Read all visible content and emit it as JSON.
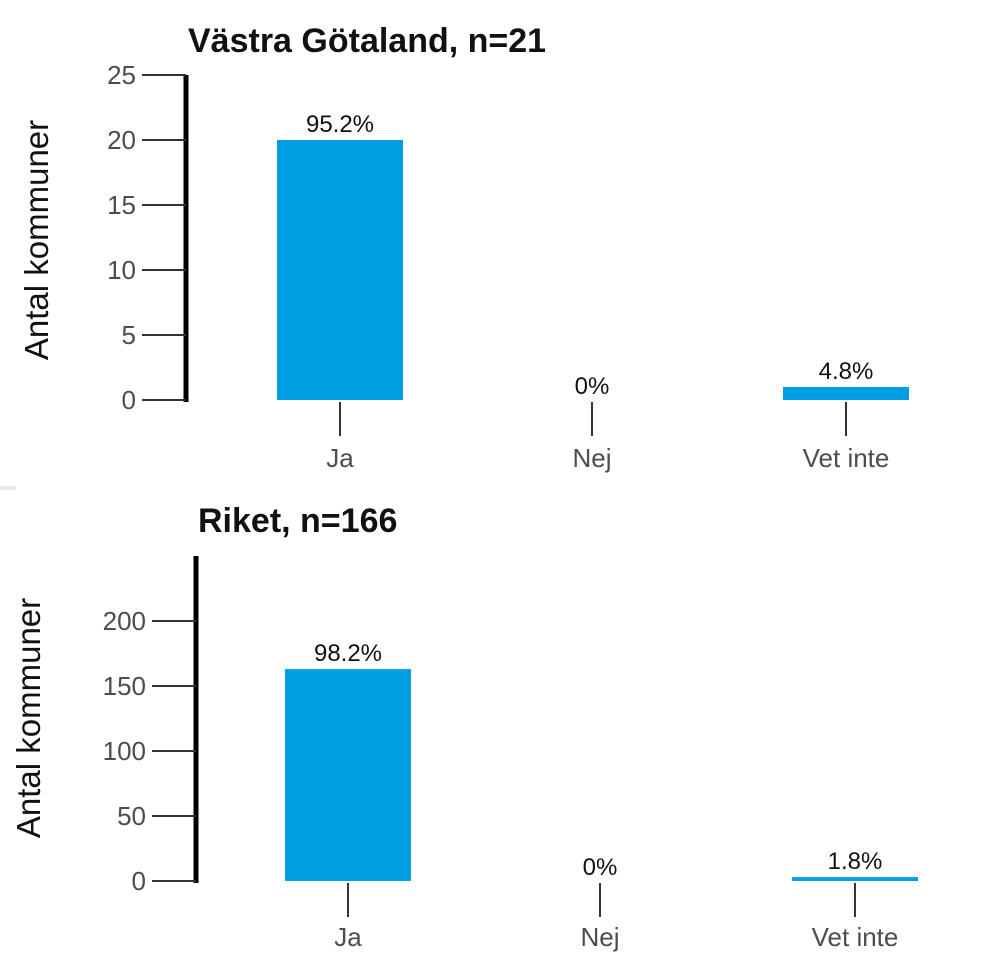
{
  "chart_data": [
    {
      "type": "bar",
      "title": "Västra Götaland, n=21",
      "ylabel": "Antal kommuner",
      "xlabel": "",
      "categories": [
        "Ja",
        "Nej",
        "Vet inte"
      ],
      "values": [
        20,
        0,
        1
      ],
      "data_labels": [
        "95.2%",
        "0%",
        "4.8%"
      ],
      "yticks": [
        "0",
        "5",
        "10",
        "15",
        "20",
        "25"
      ],
      "ylim": [
        0,
        25
      ],
      "bar_color": "#009fe3",
      "grid": false
    },
    {
      "type": "bar",
      "title": "Riket, n=166",
      "ylabel": "Antal kommuner",
      "xlabel": "",
      "categories": [
        "Ja",
        "Nej",
        "Vet inte"
      ],
      "values": [
        163,
        0,
        3
      ],
      "data_labels": [
        "98.2%",
        "0%",
        "1.8%"
      ],
      "yticks": [
        "0",
        "50",
        "100",
        "150",
        "200"
      ],
      "ylim": [
        0,
        250
      ],
      "bar_color": "#009fe3",
      "grid": false
    }
  ]
}
